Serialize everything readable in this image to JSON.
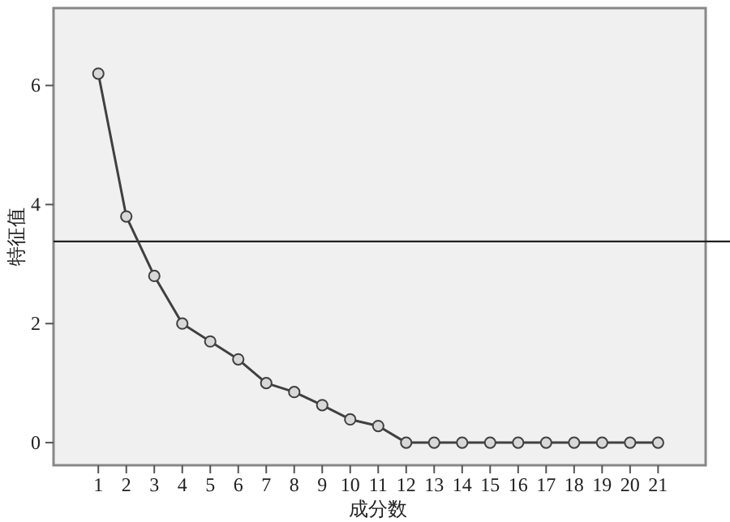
{
  "chart_data": {
    "type": "line",
    "xlabel": "成分数",
    "ylabel": "特征值",
    "x": [
      1,
      2,
      3,
      4,
      5,
      6,
      7,
      8,
      9,
      10,
      11,
      12,
      13,
      14,
      15,
      16,
      17,
      18,
      19,
      20,
      21
    ],
    "values": [
      6.2,
      3.8,
      2.8,
      2.0,
      1.7,
      1.4,
      1.0,
      0.85,
      0.63,
      0.39,
      0.28,
      0,
      0,
      0,
      0,
      0,
      0,
      0,
      0,
      0,
      0
    ],
    "color": "#404040",
    "marker": "circle",
    "line_style": "solid",
    "xlim": [
      -0.6,
      22.7
    ],
    "ylim": [
      -0.38,
      7.3
    ],
    "xticks": [
      1,
      2,
      3,
      4,
      5,
      6,
      7,
      8,
      9,
      10,
      11,
      12,
      13,
      14,
      15,
      16,
      17,
      18,
      19,
      20,
      21
    ],
    "yticks": [
      0,
      2,
      4,
      6
    ],
    "ref_lines": [
      {
        "axis": "y",
        "value": 3.38,
        "color": "#202020"
      }
    ]
  }
}
